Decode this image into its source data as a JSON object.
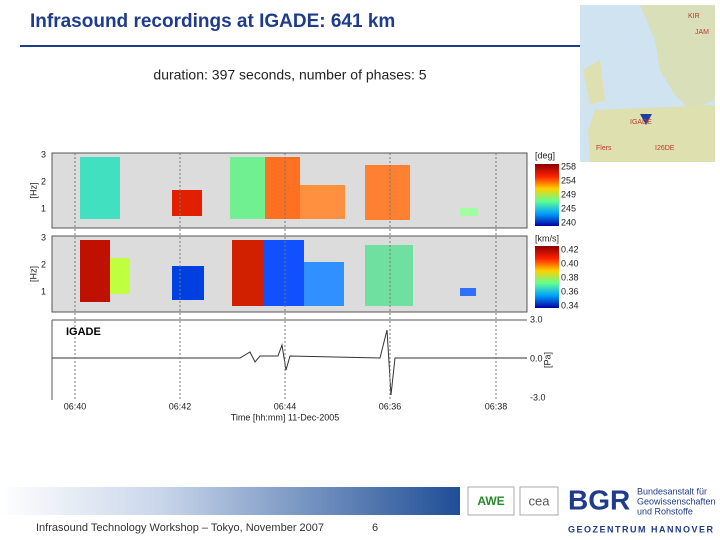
{
  "header": {
    "title": "Infrasound recordings at IGADE: 641 km",
    "subtitle": "duration: 397 seconds, number of phases: 5"
  },
  "map": {
    "labels": [
      "KIR",
      "JAM",
      "IGADE",
      "Flers",
      "I26DE"
    ]
  },
  "panels": [
    {
      "yticks": [
        "3",
        "2",
        "1"
      ],
      "ylabel": "[Hz]",
      "colorbar_unit": "[deg]",
      "colorbar_labels": [
        "258",
        "254",
        "249",
        "245",
        "240"
      ]
    },
    {
      "yticks": [
        "3",
        "2",
        "1"
      ],
      "ylabel": "[Hz]",
      "colorbar_unit": "[km/s]",
      "colorbar_labels": [
        "0.42",
        "0.40",
        "0.38",
        "0.36",
        "0.34"
      ]
    },
    {
      "station": "IGADE",
      "yticks": [
        "3.0",
        "0.0",
        "-3.0"
      ],
      "ylabel": "[Pa]"
    }
  ],
  "xaxis": {
    "ticks": [
      "06:40",
      "06:42",
      "06:44",
      "06:36",
      "06:38"
    ],
    "label": "Time [hh:mm] 11-Dec-2005"
  },
  "footer": {
    "text": "Infrasound Technology Workshop – Tokyo, November 2007",
    "page": "6",
    "logos": [
      "AWE",
      "cea",
      "BGR"
    ],
    "institute": [
      "Bundesanstalt für",
      "Geowissenschaften",
      "und Rohstoffe"
    ],
    "center": "GEOZENTRUM HANNOVER"
  }
}
